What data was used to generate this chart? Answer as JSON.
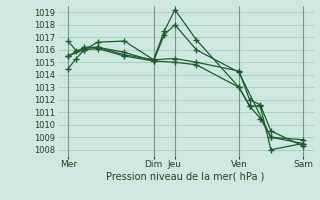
{
  "xlabel": "Pression niveau de la mer( hPa )",
  "bg_color": "#cce8e0",
  "grid_color": "#aaccbb",
  "line_color": "#1e5c30",
  "ylim": [
    1007.5,
    1019.5
  ],
  "yticks": [
    1008,
    1009,
    1010,
    1011,
    1012,
    1013,
    1014,
    1015,
    1016,
    1017,
    1018,
    1019
  ],
  "xlim": [
    0,
    192
  ],
  "day_labels": [
    "Mer",
    "Dim",
    "Jeu",
    "Ven",
    "Sam"
  ],
  "day_positions": [
    8,
    72,
    88,
    136,
    184
  ],
  "vline_positions": [
    8,
    72,
    88,
    136,
    184
  ],
  "series": [
    {
      "x": [
        8,
        14,
        20,
        30,
        50,
        72,
        80,
        88,
        104,
        136,
        144,
        152,
        160,
        184
      ],
      "y": [
        1014.5,
        1015.3,
        1016.0,
        1016.6,
        1016.7,
        1015.2,
        1017.5,
        1019.2,
        1016.8,
        1013.0,
        1011.5,
        1011.5,
        1008.0,
        1008.5
      ]
    },
    {
      "x": [
        8,
        14,
        20,
        30,
        50,
        72,
        80,
        88,
        104,
        136,
        160,
        184
      ],
      "y": [
        1016.7,
        1015.9,
        1016.1,
        1016.2,
        1015.8,
        1015.1,
        1017.2,
        1018.0,
        1016.0,
        1014.2,
        1009.0,
        1008.5
      ]
    },
    {
      "x": [
        8,
        20,
        30,
        50,
        72,
        88,
        104,
        136,
        144,
        152,
        160,
        184
      ],
      "y": [
        1015.5,
        1016.0,
        1016.1,
        1015.5,
        1015.1,
        1015.0,
        1014.8,
        1013.0,
        1011.5,
        1010.5,
        1009.0,
        1008.8
      ]
    },
    {
      "x": [
        8,
        20,
        30,
        50,
        72,
        88,
        104,
        136,
        144,
        152,
        160,
        184
      ],
      "y": [
        1015.5,
        1016.2,
        1016.2,
        1015.6,
        1015.2,
        1015.3,
        1015.0,
        1014.3,
        1012.0,
        1011.6,
        1009.5,
        1008.3
      ]
    }
  ]
}
